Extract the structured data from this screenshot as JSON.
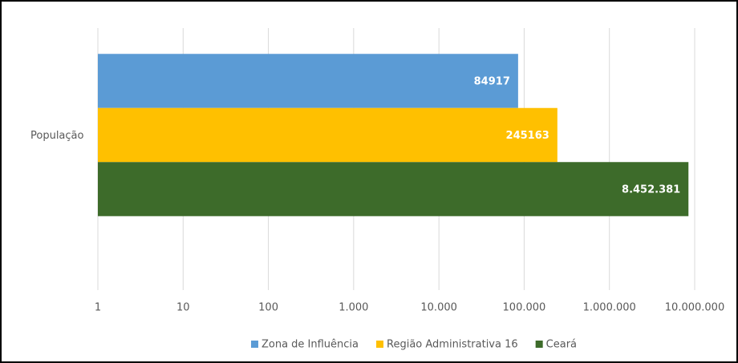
{
  "chart_data": {
    "type": "bar",
    "orientation": "horizontal",
    "log_scale": true,
    "grid": true,
    "legend": "bottom",
    "categories": [
      "População"
    ],
    "series": [
      {
        "name": "Zona de Influência",
        "color": "#5b9bd5",
        "values": [
          84917
        ],
        "value_labels": [
          "84917"
        ]
      },
      {
        "name": "Região Administrativa 16",
        "color": "#ffc000",
        "values": [
          245163
        ],
        "value_labels": [
          "245163"
        ]
      },
      {
        "name": "Ceará",
        "color": "#3d6b2a",
        "values": [
          8452381
        ],
        "value_labels": [
          "8.452.381"
        ]
      }
    ],
    "xlim": [
      1,
      10000000
    ],
    "xticks": [
      1,
      10,
      100,
      {
        "value": 1000,
        "label": "1.000"
      },
      {
        "value": 10000,
        "label": "10.000"
      },
      {
        "value": 100000,
        "label": "100.000"
      },
      {
        "value": 1000000,
        "label": "1.000.000"
      },
      {
        "value": 10000000,
        "label": "10.000.000"
      }
    ]
  }
}
